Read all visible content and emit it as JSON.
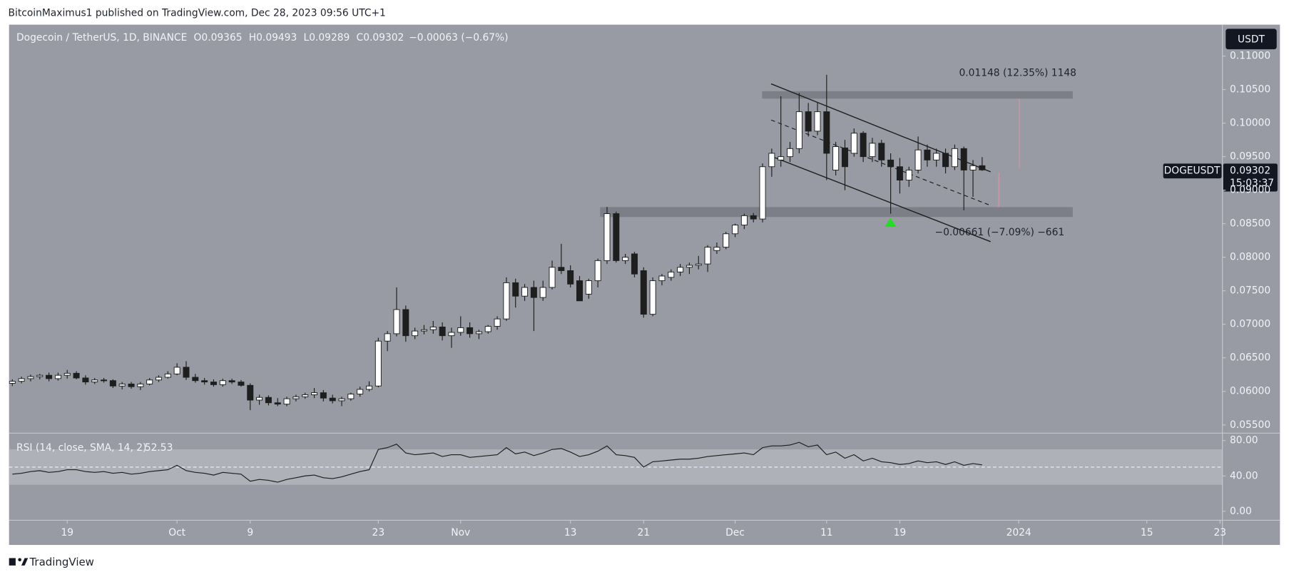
{
  "chart_data": {
    "type": "candlestick",
    "header": "BitcoinMaximus1 published on TradingView.com, Dec 28, 2023 09:56 UTC+1",
    "legend": {
      "title": "Dogecoin / TetherUS, 1D, BINANCE",
      "items": [
        [
          "O",
          "0.09365"
        ],
        [
          "H",
          "0.09493"
        ],
        [
          "L",
          "0.09289"
        ],
        [
          "C",
          "0.09302"
        ]
      ],
      "change": "−0.00063 (−0.67%)"
    },
    "currency": "USDT",
    "symbol": "DOGEUSDT",
    "last_price": "0.09302",
    "countdown": "15:03:37",
    "annotations": [
      "0.01148 (12.35%) 1148",
      "−0.00661 (−7.09%) −661"
    ],
    "footer": "TradingView",
    "up_color": "#ffffff",
    "down_color": "#1e1e1e",
    "xlim": [
      -0.36,
      132.26
    ],
    "xticks": [
      {
        "value": 6,
        "label": "19"
      },
      {
        "value": 18,
        "label": "Oct"
      },
      {
        "value": 26,
        "label": "9"
      },
      {
        "value": 40,
        "label": "23"
      },
      {
        "value": 49,
        "label": "Nov"
      },
      {
        "value": 61,
        "label": "13"
      },
      {
        "value": 69,
        "label": "21"
      },
      {
        "value": 79,
        "label": "Dec"
      },
      {
        "value": 89,
        "label": "11"
      },
      {
        "value": 97,
        "label": "19"
      },
      {
        "value": 110,
        "label": "2024"
      },
      {
        "value": 124,
        "label": "15"
      },
      {
        "value": 132,
        "label": "23"
      }
    ],
    "ylim": [
      0.05377,
      0.11468
    ],
    "yticks": [
      {
        "value": 0.055,
        "label": "0.05500"
      },
      {
        "value": 0.06,
        "label": "0.06000"
      },
      {
        "value": 0.065,
        "label": "0.06500"
      },
      {
        "value": 0.07,
        "label": "0.07000"
      },
      {
        "value": 0.075,
        "label": "0.07500"
      },
      {
        "value": 0.08,
        "label": "0.08000"
      },
      {
        "value": 0.085,
        "label": "0.08500"
      },
      {
        "value": 0.09,
        "label": "0.09000"
      },
      {
        "value": 0.095,
        "label": "0.09500"
      },
      {
        "value": 0.1,
        "label": "0.10000"
      },
      {
        "value": 0.105,
        "label": "0.10500"
      },
      {
        "value": 0.11,
        "label": "0.11000"
      }
    ],
    "ohlc": [
      [
        0.0612,
        0.0618,
        0.0608,
        0.0615
      ],
      [
        0.0615,
        0.0622,
        0.0612,
        0.0619
      ],
      [
        0.0619,
        0.0625,
        0.0615,
        0.0622
      ],
      [
        0.0622,
        0.0626,
        0.0618,
        0.0624
      ],
      [
        0.0624,
        0.0628,
        0.0615,
        0.0619
      ],
      [
        0.0619,
        0.0628,
        0.0616,
        0.0624
      ],
      [
        0.0624,
        0.0632,
        0.0619,
        0.0627
      ],
      [
        0.0627,
        0.063,
        0.0618,
        0.062
      ],
      [
        0.062,
        0.0624,
        0.061,
        0.0614
      ],
      [
        0.0614,
        0.062,
        0.0611,
        0.0617
      ],
      [
        0.0617,
        0.062,
        0.0613,
        0.0616
      ],
      [
        0.0616,
        0.0618,
        0.0605,
        0.0608
      ],
      [
        0.0608,
        0.0614,
        0.0603,
        0.0611
      ],
      [
        0.0611,
        0.0614,
        0.0604,
        0.0607
      ],
      [
        0.0607,
        0.0614,
        0.0602,
        0.0611
      ],
      [
        0.0611,
        0.062,
        0.0609,
        0.0617
      ],
      [
        0.0617,
        0.0624,
        0.0614,
        0.0621
      ],
      [
        0.0621,
        0.063,
        0.0619,
        0.0626
      ],
      [
        0.0626,
        0.0642,
        0.0624,
        0.0636
      ],
      [
        0.0636,
        0.0645,
        0.0617,
        0.0621
      ],
      [
        0.0621,
        0.0626,
        0.0613,
        0.0616
      ],
      [
        0.0616,
        0.062,
        0.061,
        0.0614
      ],
      [
        0.0614,
        0.0618,
        0.0607,
        0.061
      ],
      [
        0.061,
        0.0619,
        0.0607,
        0.0616
      ],
      [
        0.0616,
        0.0619,
        0.0611,
        0.0614
      ],
      [
        0.0614,
        0.0617,
        0.0607,
        0.0609
      ],
      [
        0.0609,
        0.0612,
        0.0572,
        0.0587
      ],
      [
        0.0587,
        0.0595,
        0.058,
        0.0591
      ],
      [
        0.0591,
        0.0594,
        0.0579,
        0.0583
      ],
      [
        0.0583,
        0.059,
        0.0578,
        0.0581
      ],
      [
        0.0581,
        0.0592,
        0.0578,
        0.0589
      ],
      [
        0.0589,
        0.0595,
        0.0585,
        0.0592
      ],
      [
        0.0592,
        0.0598,
        0.0589,
        0.0595
      ],
      [
        0.0595,
        0.0605,
        0.059,
        0.0598
      ],
      [
        0.0598,
        0.0602,
        0.0585,
        0.059
      ],
      [
        0.059,
        0.0595,
        0.0582,
        0.0586
      ],
      [
        0.0586,
        0.0592,
        0.0578,
        0.0589
      ],
      [
        0.0589,
        0.0598,
        0.0586,
        0.0596
      ],
      [
        0.0596,
        0.0607,
        0.0592,
        0.0603
      ],
      [
        0.0603,
        0.0615,
        0.06,
        0.0608
      ],
      [
        0.0608,
        0.068,
        0.0606,
        0.0675
      ],
      [
        0.0675,
        0.069,
        0.066,
        0.0686
      ],
      [
        0.0686,
        0.0755,
        0.0682,
        0.0722
      ],
      [
        0.0722,
        0.0728,
        0.0674,
        0.0683
      ],
      [
        0.0683,
        0.0695,
        0.0678,
        0.069
      ],
      [
        0.069,
        0.0699,
        0.0685,
        0.0692
      ],
      [
        0.0692,
        0.0705,
        0.0686,
        0.0696
      ],
      [
        0.0696,
        0.0703,
        0.0676,
        0.0683
      ],
      [
        0.0683,
        0.0695,
        0.0665,
        0.0688
      ],
      [
        0.0688,
        0.0712,
        0.0683,
        0.0695
      ],
      [
        0.0695,
        0.0703,
        0.068,
        0.0686
      ],
      [
        0.0686,
        0.0692,
        0.0678,
        0.0689
      ],
      [
        0.0689,
        0.0699,
        0.0686,
        0.0697
      ],
      [
        0.0697,
        0.0712,
        0.0692,
        0.0708
      ],
      [
        0.0708,
        0.077,
        0.0705,
        0.0762
      ],
      [
        0.0762,
        0.0768,
        0.0725,
        0.0742
      ],
      [
        0.0742,
        0.076,
        0.0735,
        0.0755
      ],
      [
        0.0755,
        0.0765,
        0.069,
        0.074
      ],
      [
        0.074,
        0.0765,
        0.0735,
        0.0755
      ],
      [
        0.0755,
        0.0795,
        0.0752,
        0.0785
      ],
      [
        0.0785,
        0.082,
        0.0775,
        0.078
      ],
      [
        0.078,
        0.0788,
        0.0755,
        0.076
      ],
      [
        0.0765,
        0.0772,
        0.0735,
        0.0735
      ],
      [
        0.0745,
        0.0768,
        0.0738,
        0.0765
      ],
      [
        0.0765,
        0.0798,
        0.0755,
        0.0795
      ],
      [
        0.0795,
        0.0875,
        0.079,
        0.0865
      ],
      [
        0.0865,
        0.0868,
        0.0792,
        0.0795
      ],
      [
        0.0795,
        0.0805,
        0.079,
        0.08
      ],
      [
        0.0805,
        0.0808,
        0.077,
        0.0775
      ],
      [
        0.078,
        0.0785,
        0.071,
        0.0715
      ],
      [
        0.0715,
        0.077,
        0.0712,
        0.0765
      ],
      [
        0.0765,
        0.0775,
        0.0758,
        0.0772
      ],
      [
        0.077,
        0.0782,
        0.0765,
        0.0778
      ],
      [
        0.0778,
        0.079,
        0.0772,
        0.0785
      ],
      [
        0.0785,
        0.0792,
        0.0775,
        0.0788
      ],
      [
        0.0788,
        0.0802,
        0.0782,
        0.079
      ],
      [
        0.079,
        0.0818,
        0.0778,
        0.0815
      ],
      [
        0.081,
        0.0822,
        0.0805,
        0.0815
      ],
      [
        0.0815,
        0.0838,
        0.0812,
        0.0835
      ],
      [
        0.0835,
        0.085,
        0.083,
        0.0848
      ],
      [
        0.0848,
        0.0865,
        0.0842,
        0.0862
      ],
      [
        0.0862,
        0.0866,
        0.0852,
        0.0857
      ],
      [
        0.0857,
        0.094,
        0.0852,
        0.0935
      ],
      [
        0.0935,
        0.0962,
        0.092,
        0.0955
      ],
      [
        0.0945,
        0.104,
        0.0935,
        0.095
      ],
      [
        0.095,
        0.0972,
        0.0942,
        0.0962
      ],
      [
        0.0962,
        0.1045,
        0.0955,
        0.1017
      ],
      [
        0.1017,
        0.103,
        0.098,
        0.0988
      ],
      [
        0.0988,
        0.103,
        0.0982,
        0.1017
      ],
      [
        0.1017,
        0.1072,
        0.0915,
        0.0955
      ],
      [
        0.093,
        0.0972,
        0.0922,
        0.0965
      ],
      [
        0.0963,
        0.0975,
        0.09,
        0.0935
      ],
      [
        0.0955,
        0.0992,
        0.095,
        0.0985
      ],
      [
        0.0985,
        0.0988,
        0.0942,
        0.095
      ],
      [
        0.095,
        0.0978,
        0.0942,
        0.097
      ],
      [
        0.097,
        0.0975,
        0.0935,
        0.0945
      ],
      [
        0.0945,
        0.0955,
        0.0865,
        0.0935
      ],
      [
        0.0935,
        0.0948,
        0.0895,
        0.0915
      ],
      [
        0.0915,
        0.0935,
        0.0905,
        0.093
      ],
      [
        0.093,
        0.098,
        0.0925,
        0.096
      ],
      [
        0.096,
        0.0968,
        0.0935,
        0.0945
      ],
      [
        0.0945,
        0.0962,
        0.0935,
        0.0955
      ],
      [
        0.0955,
        0.0962,
        0.0925,
        0.0935
      ],
      [
        0.0935,
        0.0968,
        0.093,
        0.0962
      ],
      [
        0.0962,
        0.0965,
        0.087,
        0.093
      ],
      [
        0.093,
        0.0945,
        0.089,
        0.09365
      ],
      [
        0.09365,
        0.09493,
        0.09289,
        0.09302
      ]
    ],
    "rsi": {
      "label": "RSI (14, close, SMA, 14, 2)",
      "value_label": "52.53",
      "color": "#1e1e1e",
      "ylim": [
        -10.2,
        88.4
      ],
      "yticks": [
        {
          "value": 0,
          "label": "0.00"
        },
        {
          "value": 40,
          "label": "40.00"
        },
        {
          "value": 80,
          "label": "80.00"
        }
      ],
      "levels": [
        30,
        50,
        70
      ],
      "values": [
        42,
        43,
        45,
        46,
        44,
        45,
        47,
        47,
        45,
        44,
        45,
        43,
        44,
        42,
        43,
        45,
        46,
        47,
        52,
        46,
        44,
        43,
        41,
        44,
        43,
        42,
        34,
        36,
        35,
        33,
        36,
        38,
        40,
        41,
        38,
        37,
        39,
        42,
        45,
        47,
        70,
        72,
        76,
        66,
        64,
        65,
        66,
        62,
        64,
        64,
        61,
        62,
        63,
        64,
        72,
        65,
        67,
        63,
        66,
        70,
        71,
        67,
        62,
        64,
        68,
        74,
        64,
        63,
        61,
        50,
        56,
        57,
        58,
        59,
        59,
        60,
        62,
        63,
        64,
        65,
        66,
        64,
        72,
        74,
        74,
        75,
        78,
        73,
        75,
        64,
        67,
        60,
        64,
        57,
        60,
        56,
        55,
        53,
        54,
        57,
        55,
        56,
        53,
        56,
        52,
        54,
        52.53
      ]
    }
  }
}
